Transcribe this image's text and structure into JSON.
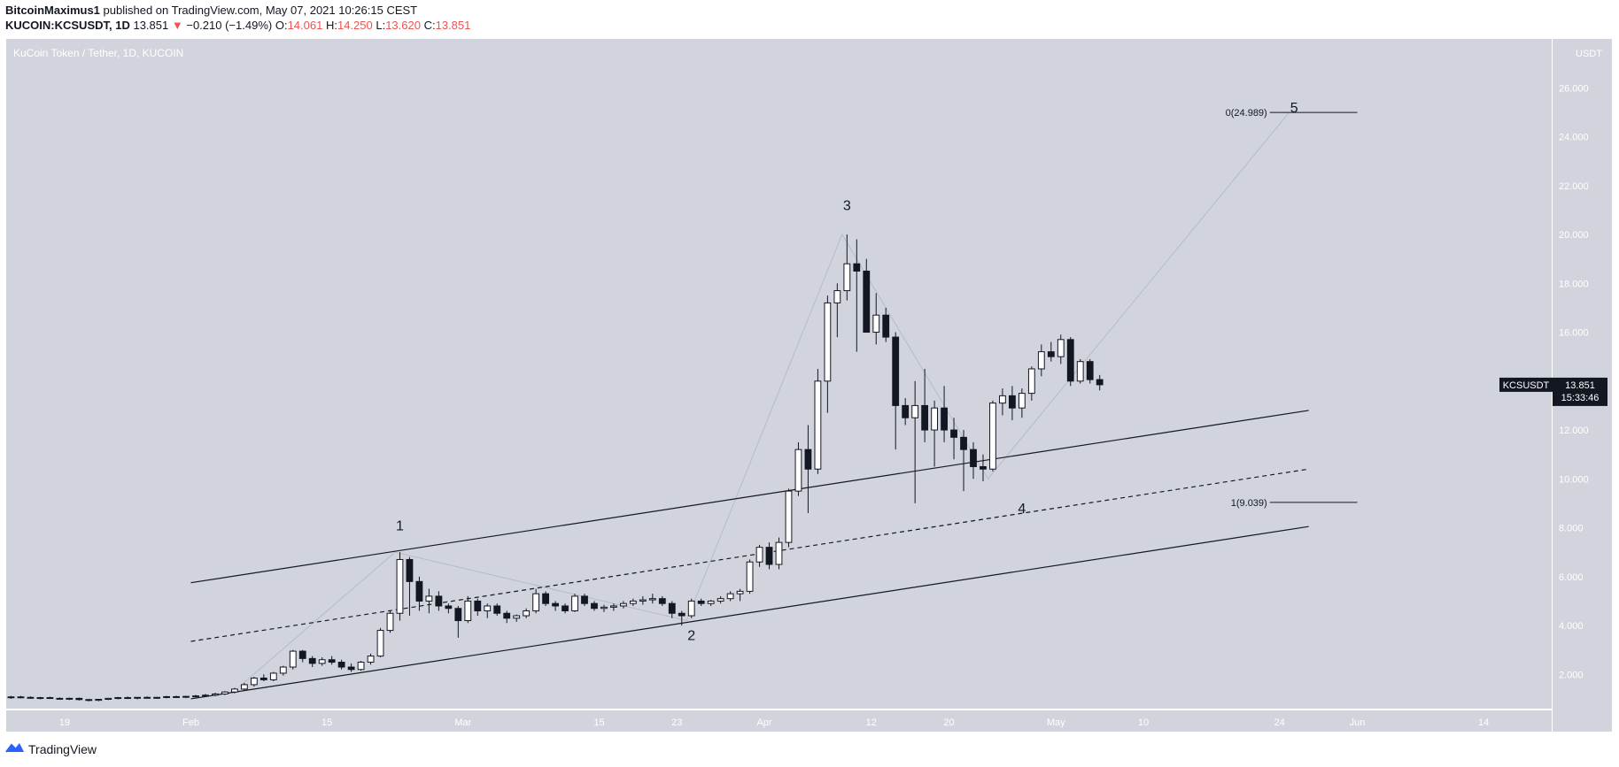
{
  "header": {
    "author": "BitcoinMaximus1",
    "published_text": " published on TradingView.com, May 07, 2021 10:26:15 CEST",
    "symbol": "KUCOIN:KCSUSDT, 1D",
    "last": "13.851",
    "arrow": "▼",
    "change": "−0.210 (−1.49%)",
    "o_label": "O:",
    "o_value": "14.061",
    "h_label": "H:",
    "h_value": "14.250",
    "l_label": "L:",
    "l_value": "13.620",
    "c_label": "C:",
    "c_value": "13.851"
  },
  "colors": {
    "background": "#d1d4dc",
    "bull_candle": "#ffffff",
    "bear_candle": "#131722",
    "change_red": "#ef5350",
    "price_tag": "#131722"
  },
  "brand": {
    "icon": "tradingview-logo-icon",
    "label": "TradingView"
  },
  "chart_data": {
    "type": "candlestick",
    "title": "KuCoin Token / Tether, 1D, KUCOIN",
    "y_unit": "USDT",
    "ylim": [
      0.6,
      28.0
    ],
    "y_ticks": [
      2,
      4,
      6,
      8,
      10,
      12,
      14,
      16,
      18,
      20,
      22,
      24,
      26
    ],
    "y_tick_labels": [
      "2.000",
      "4.000",
      "6.000",
      "8.000",
      "10.000",
      "12.000",
      "14.000",
      "16.000",
      "18.000",
      "20.000",
      "22.000",
      "24.000",
      "26.000"
    ],
    "x_range": [
      "2021-01-13",
      "2021-06-21"
    ],
    "x_ticks": [
      {
        "date": "2021-01-19",
        "label": "19"
      },
      {
        "date": "2021-02-01",
        "label": "Feb"
      },
      {
        "date": "2021-02-15",
        "label": "15"
      },
      {
        "date": "2021-03-01",
        "label": "Mar"
      },
      {
        "date": "2021-03-15",
        "label": "15"
      },
      {
        "date": "2021-03-23",
        "label": "23"
      },
      {
        "date": "2021-04-01",
        "label": "Apr"
      },
      {
        "date": "2021-04-12",
        "label": "12"
      },
      {
        "date": "2021-04-20",
        "label": "20"
      },
      {
        "date": "2021-05-01",
        "label": "May"
      },
      {
        "date": "2021-05-10",
        "label": "10"
      },
      {
        "date": "2021-05-24",
        "label": "24"
      },
      {
        "date": "2021-06-01",
        "label": "Jun"
      },
      {
        "date": "2021-06-14",
        "label": "14"
      }
    ],
    "last_price": {
      "value": 13.851,
      "label": "KCSUSDT",
      "value_label": "13.851",
      "countdown": "15:33:46"
    },
    "candles": [
      {
        "d": "2021-01-13",
        "o": 1.05,
        "h": 1.12,
        "l": 1.0,
        "c": 1.08
      },
      {
        "d": "2021-01-14",
        "o": 1.08,
        "h": 1.12,
        "l": 1.02,
        "c": 1.06
      },
      {
        "d": "2021-01-15",
        "o": 1.06,
        "h": 1.1,
        "l": 1.0,
        "c": 1.03
      },
      {
        "d": "2021-01-16",
        "o": 1.03,
        "h": 1.08,
        "l": 0.98,
        "c": 1.05
      },
      {
        "d": "2021-01-17",
        "o": 1.05,
        "h": 1.09,
        "l": 1.0,
        "c": 1.02
      },
      {
        "d": "2021-01-18",
        "o": 1.02,
        "h": 1.06,
        "l": 0.96,
        "c": 1.0
      },
      {
        "d": "2021-01-19",
        "o": 1.0,
        "h": 1.05,
        "l": 0.95,
        "c": 1.02
      },
      {
        "d": "2021-01-20",
        "o": 1.02,
        "h": 1.05,
        "l": 0.93,
        "c": 0.97
      },
      {
        "d": "2021-01-21",
        "o": 0.97,
        "h": 1.0,
        "l": 0.9,
        "c": 0.94
      },
      {
        "d": "2021-01-22",
        "o": 0.94,
        "h": 1.0,
        "l": 0.9,
        "c": 0.98
      },
      {
        "d": "2021-01-23",
        "o": 0.98,
        "h": 1.04,
        "l": 0.95,
        "c": 1.02
      },
      {
        "d": "2021-01-24",
        "o": 1.02,
        "h": 1.08,
        "l": 0.98,
        "c": 1.05
      },
      {
        "d": "2021-01-25",
        "o": 1.05,
        "h": 1.1,
        "l": 1.0,
        "c": 1.03
      },
      {
        "d": "2021-01-26",
        "o": 1.03,
        "h": 1.07,
        "l": 0.98,
        "c": 1.06
      },
      {
        "d": "2021-01-27",
        "o": 1.06,
        "h": 1.1,
        "l": 1.01,
        "c": 1.04
      },
      {
        "d": "2021-01-28",
        "o": 1.04,
        "h": 1.08,
        "l": 1.0,
        "c": 1.06
      },
      {
        "d": "2021-01-29",
        "o": 1.06,
        "h": 1.12,
        "l": 1.02,
        "c": 1.09
      },
      {
        "d": "2021-01-30",
        "o": 1.09,
        "h": 1.13,
        "l": 1.04,
        "c": 1.07
      },
      {
        "d": "2021-01-31",
        "o": 1.07,
        "h": 1.12,
        "l": 1.03,
        "c": 1.1
      },
      {
        "d": "2021-02-01",
        "o": 1.1,
        "h": 1.16,
        "l": 1.06,
        "c": 1.12
      },
      {
        "d": "2021-02-02",
        "o": 1.12,
        "h": 1.2,
        "l": 1.08,
        "c": 1.15
      },
      {
        "d": "2021-02-03",
        "o": 1.15,
        "h": 1.25,
        "l": 1.1,
        "c": 1.2
      },
      {
        "d": "2021-02-04",
        "o": 1.2,
        "h": 1.32,
        "l": 1.15,
        "c": 1.28
      },
      {
        "d": "2021-02-05",
        "o": 1.28,
        "h": 1.45,
        "l": 1.22,
        "c": 1.4
      },
      {
        "d": "2021-02-06",
        "o": 1.4,
        "h": 1.65,
        "l": 1.35,
        "c": 1.58
      },
      {
        "d": "2021-02-07",
        "o": 1.58,
        "h": 1.9,
        "l": 1.5,
        "c": 1.85
      },
      {
        "d": "2021-02-08",
        "o": 1.85,
        "h": 2.0,
        "l": 1.72,
        "c": 1.78
      },
      {
        "d": "2021-02-09",
        "o": 1.78,
        "h": 2.1,
        "l": 1.72,
        "c": 2.05
      },
      {
        "d": "2021-02-10",
        "o": 2.05,
        "h": 2.35,
        "l": 1.95,
        "c": 2.3
      },
      {
        "d": "2021-02-11",
        "o": 2.3,
        "h": 3.0,
        "l": 2.2,
        "c": 2.95
      },
      {
        "d": "2021-02-12",
        "o": 2.95,
        "h": 3.0,
        "l": 2.5,
        "c": 2.65
      },
      {
        "d": "2021-02-13",
        "o": 2.65,
        "h": 2.75,
        "l": 2.3,
        "c": 2.45
      },
      {
        "d": "2021-02-14",
        "o": 2.45,
        "h": 2.7,
        "l": 2.35,
        "c": 2.6
      },
      {
        "d": "2021-02-15",
        "o": 2.6,
        "h": 2.75,
        "l": 2.4,
        "c": 2.5
      },
      {
        "d": "2021-02-16",
        "o": 2.5,
        "h": 2.6,
        "l": 2.2,
        "c": 2.3
      },
      {
        "d": "2021-02-17",
        "o": 2.3,
        "h": 2.45,
        "l": 2.1,
        "c": 2.2
      },
      {
        "d": "2021-02-18",
        "o": 2.2,
        "h": 2.55,
        "l": 2.15,
        "c": 2.5
      },
      {
        "d": "2021-02-19",
        "o": 2.5,
        "h": 2.85,
        "l": 2.4,
        "c": 2.75
      },
      {
        "d": "2021-02-20",
        "o": 2.75,
        "h": 3.9,
        "l": 2.7,
        "c": 3.8
      },
      {
        "d": "2021-02-21",
        "o": 3.8,
        "h": 4.6,
        "l": 3.7,
        "c": 4.5
      },
      {
        "d": "2021-02-22",
        "o": 4.5,
        "h": 7.0,
        "l": 4.2,
        "c": 6.7
      },
      {
        "d": "2021-02-23",
        "o": 6.7,
        "h": 6.8,
        "l": 4.4,
        "c": 5.8
      },
      {
        "d": "2021-02-24",
        "o": 5.8,
        "h": 6.0,
        "l": 4.6,
        "c": 5.0
      },
      {
        "d": "2021-02-25",
        "o": 5.0,
        "h": 5.5,
        "l": 4.5,
        "c": 5.2
      },
      {
        "d": "2021-02-26",
        "o": 5.2,
        "h": 5.4,
        "l": 4.6,
        "c": 4.8
      },
      {
        "d": "2021-02-27",
        "o": 4.8,
        "h": 4.9,
        "l": 4.5,
        "c": 4.7
      },
      {
        "d": "2021-02-28",
        "o": 4.7,
        "h": 4.8,
        "l": 3.5,
        "c": 4.2
      },
      {
        "d": "2021-03-01",
        "o": 4.2,
        "h": 5.2,
        "l": 4.1,
        "c": 5.0
      },
      {
        "d": "2021-03-02",
        "o": 5.0,
        "h": 5.1,
        "l": 4.4,
        "c": 4.6
      },
      {
        "d": "2021-03-03",
        "o": 4.6,
        "h": 4.9,
        "l": 4.3,
        "c": 4.8
      },
      {
        "d": "2021-03-04",
        "o": 4.8,
        "h": 4.9,
        "l": 4.4,
        "c": 4.5
      },
      {
        "d": "2021-03-05",
        "o": 4.5,
        "h": 4.6,
        "l": 4.1,
        "c": 4.3
      },
      {
        "d": "2021-03-06",
        "o": 4.3,
        "h": 4.45,
        "l": 4.15,
        "c": 4.4
      },
      {
        "d": "2021-03-07",
        "o": 4.4,
        "h": 4.7,
        "l": 4.3,
        "c": 4.6
      },
      {
        "d": "2021-03-08",
        "o": 4.6,
        "h": 5.5,
        "l": 4.5,
        "c": 5.3
      },
      {
        "d": "2021-03-09",
        "o": 5.3,
        "h": 5.4,
        "l": 4.8,
        "c": 4.9
      },
      {
        "d": "2021-03-10",
        "o": 4.9,
        "h": 5.0,
        "l": 4.6,
        "c": 4.8
      },
      {
        "d": "2021-03-11",
        "o": 4.8,
        "h": 4.9,
        "l": 4.5,
        "c": 4.6
      },
      {
        "d": "2021-03-12",
        "o": 4.6,
        "h": 5.3,
        "l": 4.55,
        "c": 5.2
      },
      {
        "d": "2021-03-13",
        "o": 5.2,
        "h": 5.3,
        "l": 4.8,
        "c": 4.9
      },
      {
        "d": "2021-03-14",
        "o": 4.9,
        "h": 5.0,
        "l": 4.6,
        "c": 4.7
      },
      {
        "d": "2021-03-15",
        "o": 4.7,
        "h": 4.85,
        "l": 4.55,
        "c": 4.75
      },
      {
        "d": "2021-03-16",
        "o": 4.75,
        "h": 4.9,
        "l": 4.6,
        "c": 4.8
      },
      {
        "d": "2021-03-17",
        "o": 4.8,
        "h": 5.0,
        "l": 4.7,
        "c": 4.9
      },
      {
        "d": "2021-03-18",
        "o": 4.9,
        "h": 5.1,
        "l": 4.8,
        "c": 5.0
      },
      {
        "d": "2021-03-19",
        "o": 5.0,
        "h": 5.2,
        "l": 4.85,
        "c": 5.05
      },
      {
        "d": "2021-03-20",
        "o": 5.05,
        "h": 5.3,
        "l": 4.9,
        "c": 5.1
      },
      {
        "d": "2021-03-21",
        "o": 5.1,
        "h": 5.2,
        "l": 4.8,
        "c": 4.9
      },
      {
        "d": "2021-03-22",
        "o": 4.9,
        "h": 5.0,
        "l": 4.3,
        "c": 4.5
      },
      {
        "d": "2021-03-23",
        "o": 4.5,
        "h": 4.6,
        "l": 4.0,
        "c": 4.4
      },
      {
        "d": "2021-03-24",
        "o": 4.4,
        "h": 5.1,
        "l": 4.3,
        "c": 5.0
      },
      {
        "d": "2021-03-25",
        "o": 5.0,
        "h": 5.1,
        "l": 4.8,
        "c": 4.9
      },
      {
        "d": "2021-03-26",
        "o": 4.9,
        "h": 5.05,
        "l": 4.8,
        "c": 5.0
      },
      {
        "d": "2021-03-27",
        "o": 5.0,
        "h": 5.2,
        "l": 4.9,
        "c": 5.1
      },
      {
        "d": "2021-03-28",
        "o": 5.1,
        "h": 5.4,
        "l": 5.0,
        "c": 5.3
      },
      {
        "d": "2021-03-29",
        "o": 5.3,
        "h": 5.5,
        "l": 5.0,
        "c": 5.4
      },
      {
        "d": "2021-03-30",
        "o": 5.4,
        "h": 6.7,
        "l": 5.3,
        "c": 6.6
      },
      {
        "d": "2021-03-31",
        "o": 6.6,
        "h": 7.3,
        "l": 6.4,
        "c": 7.2
      },
      {
        "d": "2021-04-01",
        "o": 7.2,
        "h": 7.4,
        "l": 6.3,
        "c": 6.5
      },
      {
        "d": "2021-04-02",
        "o": 6.5,
        "h": 7.6,
        "l": 6.3,
        "c": 7.4
      },
      {
        "d": "2021-04-03",
        "o": 7.4,
        "h": 9.6,
        "l": 7.2,
        "c": 9.5
      },
      {
        "d": "2021-04-04",
        "o": 9.5,
        "h": 11.5,
        "l": 9.3,
        "c": 11.2
      },
      {
        "d": "2021-04-05",
        "o": 11.2,
        "h": 12.2,
        "l": 8.6,
        "c": 10.4
      },
      {
        "d": "2021-04-06",
        "o": 10.4,
        "h": 14.5,
        "l": 10.2,
        "c": 14.0
      },
      {
        "d": "2021-04-07",
        "o": 14.0,
        "h": 17.5,
        "l": 12.7,
        "c": 17.2
      },
      {
        "d": "2021-04-08",
        "o": 17.2,
        "h": 18.0,
        "l": 15.8,
        "c": 17.7
      },
      {
        "d": "2021-04-09",
        "o": 17.7,
        "h": 20.0,
        "l": 17.3,
        "c": 18.8
      },
      {
        "d": "2021-04-10",
        "o": 18.8,
        "h": 19.8,
        "l": 15.2,
        "c": 18.5
      },
      {
        "d": "2021-04-11",
        "o": 18.5,
        "h": 19.0,
        "l": 16.0,
        "c": 16.0
      },
      {
        "d": "2021-04-12",
        "o": 16.0,
        "h": 17.6,
        "l": 15.5,
        "c": 16.7
      },
      {
        "d": "2021-04-13",
        "o": 16.7,
        "h": 17.0,
        "l": 15.6,
        "c": 15.8
      },
      {
        "d": "2021-04-14",
        "o": 15.8,
        "h": 16.0,
        "l": 11.2,
        "c": 13.0
      },
      {
        "d": "2021-04-15",
        "o": 13.0,
        "h": 13.3,
        "l": 12.2,
        "c": 12.5
      },
      {
        "d": "2021-04-16",
        "o": 12.5,
        "h": 14.0,
        "l": 9.0,
        "c": 13.0
      },
      {
        "d": "2021-04-17",
        "o": 13.0,
        "h": 14.5,
        "l": 11.5,
        "c": 12.0
      },
      {
        "d": "2021-04-18",
        "o": 12.0,
        "h": 13.2,
        "l": 10.5,
        "c": 12.9
      },
      {
        "d": "2021-04-19",
        "o": 12.9,
        "h": 13.8,
        "l": 11.5,
        "c": 12.0
      },
      {
        "d": "2021-04-20",
        "o": 12.0,
        "h": 12.5,
        "l": 10.8,
        "c": 11.7
      },
      {
        "d": "2021-04-21",
        "o": 11.7,
        "h": 12.0,
        "l": 9.5,
        "c": 11.2
      },
      {
        "d": "2021-04-22",
        "o": 11.2,
        "h": 11.5,
        "l": 10.0,
        "c": 10.5
      },
      {
        "d": "2021-04-23",
        "o": 10.5,
        "h": 11.0,
        "l": 9.9,
        "c": 10.4
      },
      {
        "d": "2021-04-24",
        "o": 10.4,
        "h": 13.2,
        "l": 10.3,
        "c": 13.1
      },
      {
        "d": "2021-04-25",
        "o": 13.1,
        "h": 13.7,
        "l": 12.6,
        "c": 13.4
      },
      {
        "d": "2021-04-26",
        "o": 13.4,
        "h": 13.8,
        "l": 12.4,
        "c": 12.9
      },
      {
        "d": "2021-04-27",
        "o": 12.9,
        "h": 13.7,
        "l": 12.5,
        "c": 13.5
      },
      {
        "d": "2021-04-28",
        "o": 13.5,
        "h": 14.6,
        "l": 13.2,
        "c": 14.5
      },
      {
        "d": "2021-04-29",
        "o": 14.5,
        "h": 15.5,
        "l": 14.2,
        "c": 15.2
      },
      {
        "d": "2021-04-30",
        "o": 15.2,
        "h": 15.6,
        "l": 14.8,
        "c": 15.0
      },
      {
        "d": "2021-05-01",
        "o": 15.0,
        "h": 15.9,
        "l": 14.7,
        "c": 15.7
      },
      {
        "d": "2021-05-02",
        "o": 15.7,
        "h": 15.8,
        "l": 13.8,
        "c": 14.0
      },
      {
        "d": "2021-05-03",
        "o": 14.0,
        "h": 14.9,
        "l": 13.9,
        "c": 14.8
      },
      {
        "d": "2021-05-04",
        "o": 14.8,
        "h": 14.9,
        "l": 13.9,
        "c": 14.06
      },
      {
        "d": "2021-05-05",
        "o": 14.061,
        "h": 14.25,
        "l": 13.62,
        "c": 13.851
      }
    ],
    "channel": {
      "upper": {
        "p1": [
          "2021-02-01",
          5.75
        ],
        "p2": [
          "2021-05-27",
          12.8
        ]
      },
      "middle": {
        "p1": [
          "2021-02-01",
          3.35
        ],
        "p2": [
          "2021-05-27",
          10.4
        ]
      },
      "lower": {
        "p1": [
          "2021-02-01",
          1.0
        ],
        "p2": [
          "2021-05-27",
          8.05
        ]
      }
    },
    "wave_labels": [
      {
        "label": "1",
        "d": "2021-02-22",
        "v": 7.9
      },
      {
        "label": "2",
        "d": "2021-03-24",
        "v": 3.4
      },
      {
        "label": "3",
        "d": "2021-04-09",
        "v": 21.0
      },
      {
        "label": "4",
        "d": "2021-04-27",
        "v": 8.6
      },
      {
        "label": "5",
        "d": "2021-05-25",
        "v": 25.0
      }
    ],
    "fib_levels": [
      {
        "label": "0(24.989)",
        "value": 24.989,
        "from": "2021-05-23",
        "to": "2021-06-01"
      },
      {
        "label": "1(9.039)",
        "value": 9.039,
        "from": "2021-05-23",
        "to": "2021-06-01"
      }
    ],
    "wave_path": [
      [
        "2021-02-06",
        1.5
      ],
      [
        "2021-02-22",
        7.0
      ],
      [
        "2021-03-24",
        4.2
      ],
      [
        "2021-04-09",
        20.0
      ],
      [
        "2021-04-24",
        10.0
      ],
      [
        "2021-05-25",
        25.0
      ]
    ]
  }
}
